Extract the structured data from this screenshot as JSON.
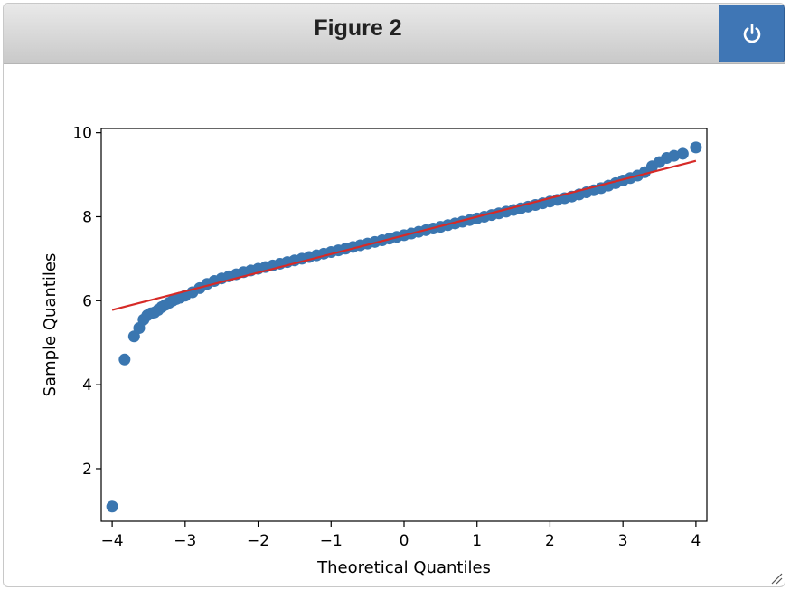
{
  "window": {
    "title": "Figure 2"
  },
  "toolbar": {
    "power_icon": "power-icon"
  },
  "colors": {
    "points": "#3a76b0",
    "line": "#d62a27",
    "button": "#3f76b5"
  },
  "chart_data": {
    "type": "scatter",
    "title": "",
    "xlabel": "Theoretical Quantiles",
    "ylabel": "Sample Quantiles",
    "xlim": [
      -4.15,
      4.15
    ],
    "ylim": [
      0.75,
      10.1
    ],
    "xticks": [
      -4,
      -3,
      -2,
      -1,
      0,
      1,
      2,
      3,
      4
    ],
    "xtick_labels": [
      "−4",
      "−3",
      "−2",
      "−1",
      "0",
      "1",
      "2",
      "3",
      "4"
    ],
    "yticks": [
      2,
      4,
      6,
      8,
      10
    ],
    "ytick_labels": [
      "2",
      "4",
      "6",
      "8",
      "10"
    ],
    "grid": false,
    "series": [
      {
        "kind": "points",
        "x": [
          -4.0,
          -3.83,
          -3.7,
          -3.63,
          -3.57,
          -3.52,
          -3.47,
          -3.42,
          -3.37,
          -3.32,
          -3.27,
          -3.22,
          -3.17,
          -3.12,
          -3.07,
          -3.0,
          -2.9,
          -2.8,
          -2.7,
          -2.6,
          -2.5,
          -2.4,
          -2.3,
          -2.2,
          -2.1,
          -2.0,
          -1.9,
          -1.8,
          -1.7,
          -1.6,
          -1.5,
          -1.4,
          -1.3,
          -1.2,
          -1.1,
          -1.0,
          -0.9,
          -0.8,
          -0.7,
          -0.6,
          -0.5,
          -0.4,
          -0.3,
          -0.2,
          -0.1,
          0.0,
          0.1,
          0.2,
          0.3,
          0.4,
          0.5,
          0.6,
          0.7,
          0.8,
          0.9,
          1.0,
          1.1,
          1.2,
          1.3,
          1.4,
          1.5,
          1.6,
          1.7,
          1.8,
          1.9,
          2.0,
          2.1,
          2.2,
          2.3,
          2.4,
          2.5,
          2.6,
          2.7,
          2.8,
          2.9,
          3.0,
          3.1,
          3.2,
          3.3,
          3.4,
          3.5,
          3.6,
          3.7,
          3.82,
          4.0
        ],
        "y": [
          1.1,
          4.6,
          5.15,
          5.35,
          5.55,
          5.65,
          5.7,
          5.72,
          5.78,
          5.85,
          5.9,
          5.95,
          6.0,
          6.04,
          6.07,
          6.12,
          6.2,
          6.3,
          6.4,
          6.47,
          6.53,
          6.58,
          6.63,
          6.68,
          6.72,
          6.76,
          6.8,
          6.84,
          6.88,
          6.92,
          6.96,
          7.0,
          7.04,
          7.08,
          7.12,
          7.16,
          7.2,
          7.24,
          7.28,
          7.32,
          7.36,
          7.4,
          7.44,
          7.48,
          7.52,
          7.56,
          7.6,
          7.64,
          7.68,
          7.72,
          7.76,
          7.8,
          7.84,
          7.88,
          7.92,
          7.96,
          8.0,
          8.04,
          8.08,
          8.12,
          8.16,
          8.2,
          8.24,
          8.28,
          8.32,
          8.36,
          8.4,
          8.44,
          8.48,
          8.53,
          8.58,
          8.63,
          8.68,
          8.74,
          8.8,
          8.86,
          8.92,
          8.98,
          9.06,
          9.2,
          9.3,
          9.4,
          9.45,
          9.5,
          9.65
        ]
      },
      {
        "kind": "fit-line",
        "x": [
          -4.0,
          4.0
        ],
        "y": [
          5.78,
          9.33
        ]
      }
    ]
  }
}
